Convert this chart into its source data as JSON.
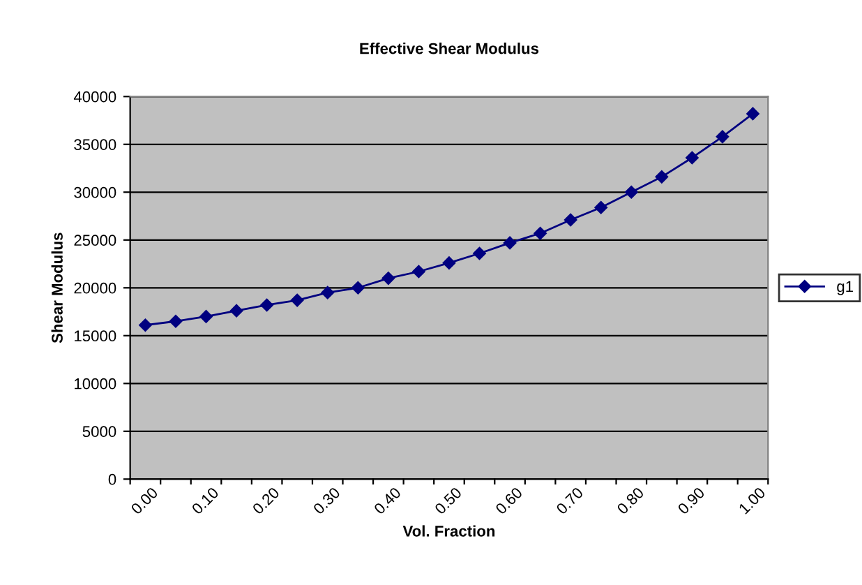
{
  "chart_data": {
    "type": "line",
    "title": "Effective Shear Modulus",
    "xlabel": "Vol. Fraction",
    "ylabel": "Shear Modulus",
    "categories": [
      "0.00",
      null,
      "0.10",
      null,
      "0.20",
      null,
      "0.30",
      null,
      "0.40",
      null,
      "0.50",
      null,
      "0.60",
      null,
      "0.70",
      null,
      "0.80",
      null,
      "0.90",
      null,
      "1.00"
    ],
    "series": [
      {
        "name": "g1",
        "color": "#000080",
        "values": [
          16100,
          16500,
          17000,
          17600,
          18200,
          18700,
          19500,
          20000,
          21000,
          21700,
          22600,
          23600,
          24700,
          25700,
          27100,
          28400,
          30000,
          31600,
          33600,
          35800,
          38200
        ]
      }
    ],
    "ylim": [
      0,
      40000
    ],
    "yticks": [
      0,
      5000,
      10000,
      15000,
      20000,
      25000,
      30000,
      35000,
      40000
    ],
    "grid": "y",
    "legend": "right",
    "marker": "diamond",
    "line_style": "solid"
  }
}
